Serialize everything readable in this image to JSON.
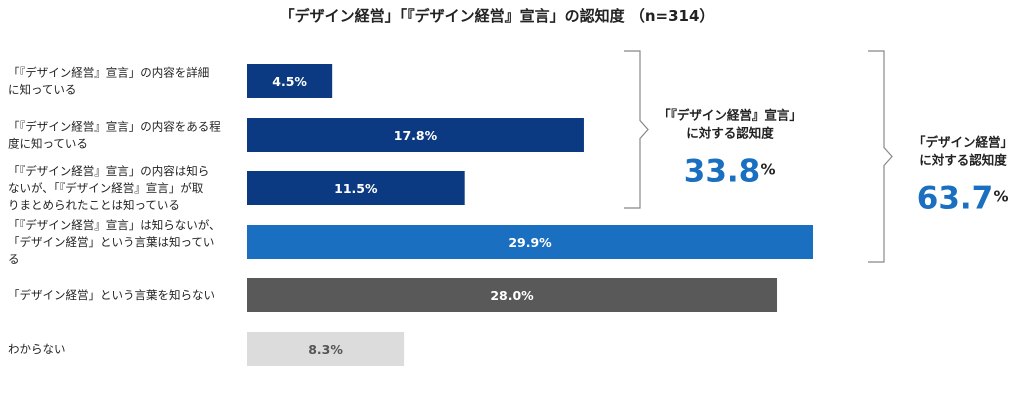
{
  "chart_data": {
    "type": "bar",
    "orientation": "horizontal",
    "title": "「デザイン経営」「『デザイン経営』宣言」の認知度 （n=314）",
    "unit": "%",
    "xlim": [
      0,
      40
    ],
    "grid": false,
    "categories": [
      [
        "「『デザイン経営』宣言」の内容を詳細",
        "に知っている"
      ],
      [
        "「『デザイン経営』宣言」の内容をある程",
        "度に知っている"
      ],
      [
        "「『デザイン経営』宣言」の内容は知ら",
        "ないが、「『デザイン経営』宣言」が取",
        "りまとめられたことは知っている"
      ],
      [
        "「『デザイン経営』宣言」は知らないが、",
        "「デザイン経営」という言葉は知ってい",
        "る"
      ],
      [
        "「デザイン経営」という言葉を知らない"
      ],
      [
        "わからない"
      ]
    ],
    "values": [
      4.5,
      17.8,
      11.5,
      29.9,
      28.0,
      8.3
    ],
    "value_labels": [
      "4.5%",
      "17.8%",
      "11.5%",
      "29.9%",
      "28.0%",
      "8.3%"
    ],
    "bar_colors": [
      "#0b3a82",
      "#0b3a82",
      "#0b3a82",
      "#1a6fc0",
      "#595959",
      "#dcdcdc"
    ],
    "label_colors": [
      "#ffffff",
      "#ffffff",
      "#ffffff",
      "#ffffff",
      "#ffffff",
      "#555555"
    ],
    "summaries": [
      {
        "title_lines": [
          "「『デザイン経営』宣言」",
          "に対する認知度"
        ],
        "value": "33.8",
        "unit": "%",
        "covers": [
          0,
          2
        ]
      },
      {
        "title_lines": [
          "「デザイン経営」",
          "に対する認知度"
        ],
        "value": "63.7",
        "unit": "%",
        "covers": [
          0,
          3
        ]
      }
    ],
    "accent_color": "#1a6fc0"
  }
}
